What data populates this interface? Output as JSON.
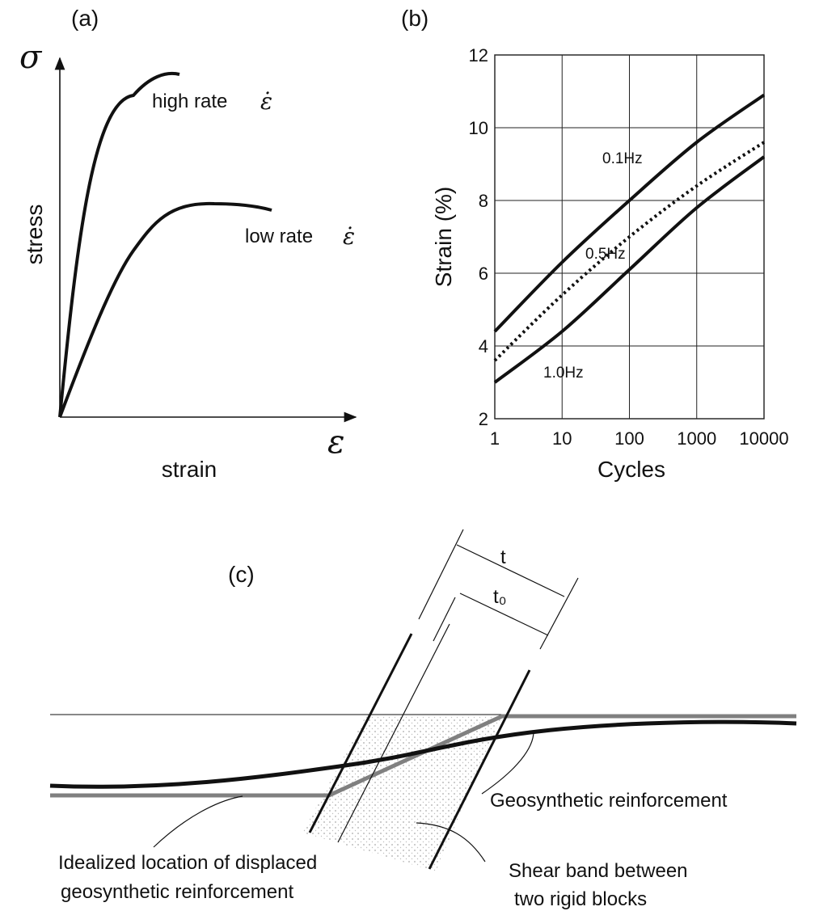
{
  "panels": {
    "a": "(a)",
    "b": "(b)",
    "c": "(c)"
  },
  "panel_a": {
    "y_symbol": "σ",
    "x_symbol": "ε",
    "ylabel": "stress",
    "xlabel": "strain",
    "high_rate_label": "high rate",
    "low_rate_label": "low rate",
    "rate_symbol": "ε̇"
  },
  "panel_c": {
    "t_label": "t",
    "t0_label": "t₀",
    "geosynthetic_label": "Geosynthetic reinforcement",
    "idealized_line1": "Idealized location of displaced",
    "idealized_line2": "geosynthetic reinforcement",
    "shear_line1": "Shear band between",
    "shear_line2": "two rigid blocks"
  },
  "chart_data": [
    {
      "type": "line",
      "panel": "a",
      "title": "",
      "xlabel": "strain",
      "ylabel": "stress",
      "note": "qualitative sketch without numeric axes",
      "series": [
        {
          "name": "high rate ε̇"
        },
        {
          "name": "low rate ε̇"
        }
      ]
    },
    {
      "type": "line",
      "panel": "b",
      "title": "",
      "xlabel": "Cycles",
      "ylabel": "Strain (%)",
      "xscale": "log",
      "xlim": [
        1,
        10000
      ],
      "ylim": [
        2,
        12
      ],
      "xticks": [
        "1",
        "10",
        "100",
        "1000",
        "10000"
      ],
      "yticks": [
        "2",
        "4",
        "6",
        "8",
        "10",
        "12"
      ],
      "grid": true,
      "x": [
        1,
        10,
        100,
        1000,
        10000
      ],
      "series": [
        {
          "name": "0.1Hz",
          "style": "solid",
          "values": [
            4.4,
            6.3,
            8.0,
            9.6,
            10.9
          ]
        },
        {
          "name": "0.5Hz",
          "style": "dotted",
          "values": [
            3.6,
            5.4,
            7.0,
            8.4,
            9.6
          ]
        },
        {
          "name": "1.0Hz",
          "style": "solid",
          "values": [
            3.0,
            4.4,
            6.1,
            7.8,
            9.2
          ]
        }
      ]
    }
  ]
}
